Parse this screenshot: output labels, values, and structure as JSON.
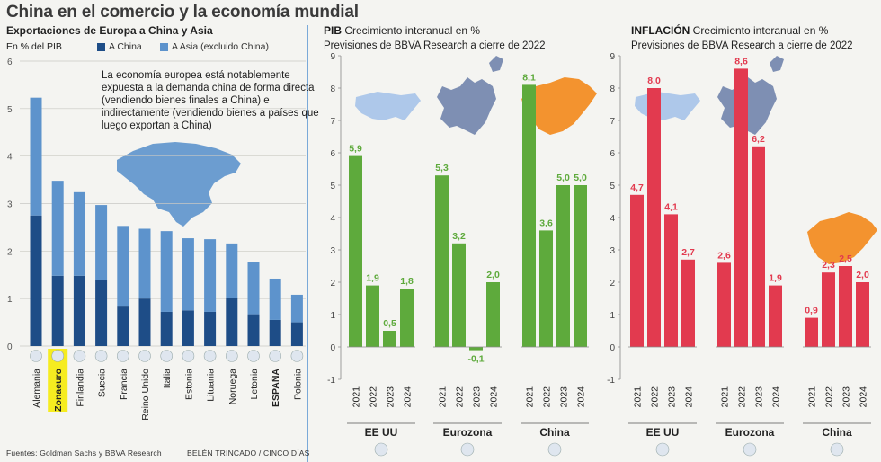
{
  "title": "China en el comercio y la economía mundial",
  "colors": {
    "dark_blue": "#1e4d87",
    "light_blue": "#5d93cc",
    "green": "#5eaa3c",
    "red": "#e23a4f",
    "map_blue": "#8fb6e3",
    "map_grey": "#7e8fb3",
    "map_orange": "#f3932f",
    "highlight": "#f6ec20"
  },
  "left_panel": {
    "heading": "Exportaciones de Europa a China y Asia",
    "unit": "En % del PIB",
    "legend": [
      {
        "label": "A China",
        "color": "#1e4d87"
      },
      {
        "label": "A Asia (excluido China)",
        "color": "#5d93cc"
      }
    ],
    "note": "La economía europea está notablemente expuesta a la demanda china de forma directa (vendiendo bienes finales a China) e indirectamente (vendiendo bienes a países que luego exportan a China)"
  },
  "pib_panel": {
    "heading_bold": "PIB",
    "heading_rest": " Crecimiento interanual en %",
    "subheading": "Previsiones de BBVA Research a cierre de 2022"
  },
  "inf_panel": {
    "heading_bold": "INFLACIÓN",
    "heading_rest": " Crecimiento interanual en %",
    "subheading": "Previsiones de BBVA Research a cierre de 2022"
  },
  "footer": {
    "source": "Fuentes: Goldman Sachs y BBVA Research",
    "credit": "BELÉN TRINCADO / CINCO DÍAS"
  },
  "chart_data": [
    {
      "type": "bar",
      "stacked": true,
      "title": "Exportaciones de Europa a China y Asia",
      "ylabel": "En % del PIB",
      "ylim": [
        0,
        6
      ],
      "yticks": [
        0,
        1,
        2,
        3,
        4,
        5,
        6
      ],
      "categories": [
        "Alemania",
        "Zonaeuro",
        "Finlandia",
        "Suecia",
        "Francia",
        "Reino Unido",
        "Italia",
        "Estonia",
        "Lituania",
        "Noruega",
        "Letonia",
        "ESPAÑA",
        "Polonia"
      ],
      "highlight": "Zonaeuro",
      "series": [
        {
          "name": "A China",
          "values": [
            2.75,
            1.48,
            1.48,
            1.4,
            0.85,
            1.0,
            0.72,
            0.75,
            0.72,
            1.02,
            0.67,
            0.55,
            0.5
          ]
        },
        {
          "name": "A Asia (excluido China)",
          "values": [
            2.48,
            2.0,
            1.76,
            1.57,
            1.68,
            1.47,
            1.7,
            1.52,
            1.53,
            1.14,
            1.09,
            0.87,
            0.58
          ]
        }
      ]
    },
    {
      "type": "bar",
      "title": "PIB Crecimiento interanual en %",
      "ylim": [
        -1,
        9
      ],
      "yticks": [
        -1,
        0,
        1,
        2,
        3,
        4,
        5,
        6,
        7,
        8,
        9
      ],
      "x": [
        "2021",
        "2022",
        "2023",
        "2024"
      ],
      "series": [
        {
          "name": "EE UU",
          "values": [
            5.9,
            1.9,
            0.5,
            1.8
          ],
          "labels": [
            "5,9",
            "1,9",
            "0,5",
            "1,8"
          ]
        },
        {
          "name": "Eurozona",
          "values": [
            5.3,
            3.2,
            -0.1,
            2.0
          ],
          "labels": [
            "5,3",
            "3,2",
            "-0,1",
            "2,0"
          ]
        },
        {
          "name": "China",
          "values": [
            8.1,
            3.6,
            5.0,
            5.0
          ],
          "labels": [
            "8,1",
            "3,6",
            "5,0",
            "5,0"
          ]
        }
      ]
    },
    {
      "type": "bar",
      "title": "INFLACIÓN Crecimiento interanual en %",
      "ylim": [
        -1,
        9
      ],
      "yticks": [
        -1,
        0,
        1,
        2,
        3,
        4,
        5,
        6,
        7,
        8,
        9
      ],
      "x": [
        "2021",
        "2022",
        "2023",
        "2024"
      ],
      "series": [
        {
          "name": "EE UU",
          "values": [
            4.7,
            8.0,
            4.1,
            2.7
          ],
          "labels": [
            "4,7",
            "8,0",
            "4,1",
            "2,7"
          ]
        },
        {
          "name": "Eurozona",
          "values": [
            2.6,
            8.6,
            6.2,
            1.9
          ],
          "labels": [
            "2,6",
            "8,6",
            "6,2",
            "1,9"
          ]
        },
        {
          "name": "China",
          "values": [
            0.9,
            2.3,
            2.5,
            2.0
          ],
          "labels": [
            "0,9",
            "2,3",
            "2,5",
            "2,0"
          ]
        }
      ]
    }
  ]
}
